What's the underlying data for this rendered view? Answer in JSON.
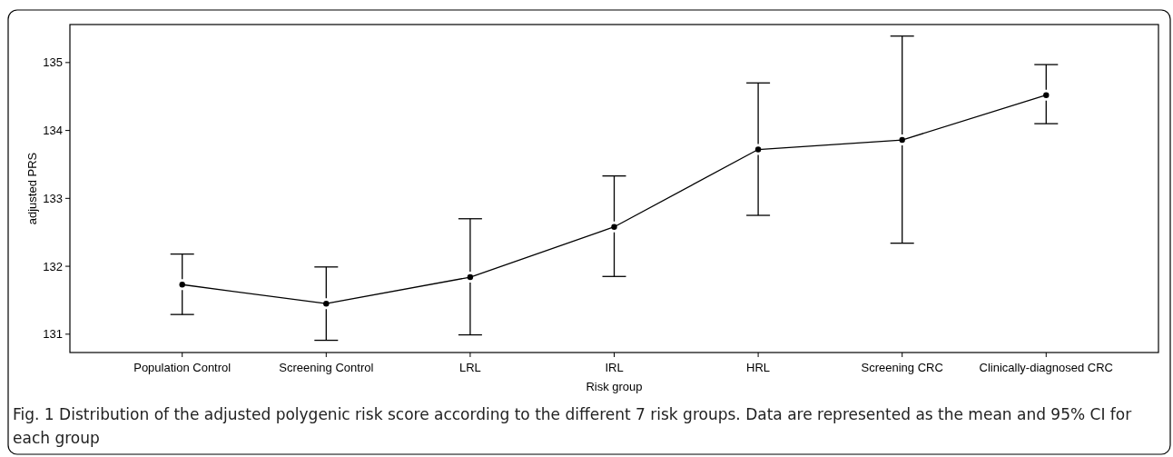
{
  "chart_data": {
    "type": "line",
    "xlabel": "Risk group",
    "ylabel": "adjusted PRS",
    "categories": [
      "Population Control",
      "Screening Control",
      "LRL",
      "IRL",
      "HRL",
      "Screening CRC",
      "Clinically-diagnosed CRC"
    ],
    "series": [
      {
        "color": "#000000",
        "values": [
          131.73,
          131.45,
          131.84,
          132.58,
          133.72,
          133.86,
          134.52
        ],
        "errors": [
          [
            131.29,
            132.18
          ],
          [
            130.91,
            131.99
          ],
          [
            130.99,
            132.7
          ],
          [
            131.85,
            133.33
          ],
          [
            132.75,
            134.7
          ],
          [
            132.34,
            135.39
          ],
          [
            134.1,
            134.97
          ]
        ]
      }
    ],
    "ylim": [
      130.73,
      135.56
    ],
    "yticks": [
      131,
      132,
      133,
      134,
      135
    ],
    "marker": "circle",
    "line_style": "solid",
    "annotations": [
      "Fig. 1 Distribution of the adjusted polygenic risk score according to the different 7 risk groups. Data are represented as the mean and 95% CI for each group"
    ]
  }
}
